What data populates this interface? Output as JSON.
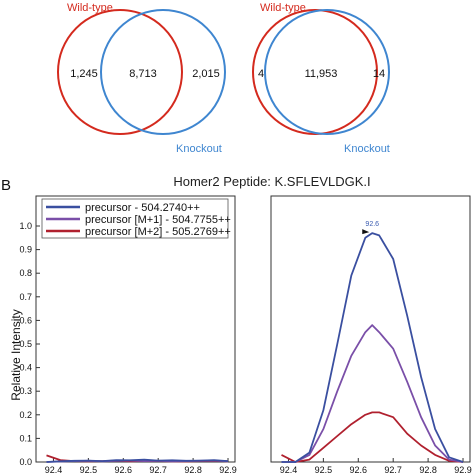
{
  "venn": [
    {
      "left_label": "Wild-type",
      "right_label": "Knockout",
      "left_only": "1,245",
      "overlap": "8,713",
      "right_only": "2,015"
    },
    {
      "left_label": "Wild-type",
      "right_label": "Knockout",
      "left_only": "4",
      "overlap": "11,953",
      "right_only": "14"
    }
  ],
  "panel_b": {
    "panel_letter": "B",
    "title": "Homer2 Peptide: K.SFLEVLDGK.I",
    "ylabel": "Relative Intensity"
  },
  "colors": {
    "wild_type": "#d42a1e",
    "knockout": "#3f86d0",
    "precursor": "#3a4fa0",
    "m1": "#7a4fa8",
    "m2": "#b0202e"
  },
  "chart_data": [
    {
      "type": "line",
      "ylim": [
        0,
        1.0
      ],
      "xlim": [
        92.35,
        92.92
      ],
      "xticks": [
        "92.4",
        "92.5",
        "92.6",
        "92.7",
        "92.8",
        "92.9"
      ],
      "yticks": [
        "0.0",
        "0.1",
        "0.2",
        "0.3",
        "0.4",
        "0.5",
        "0.6",
        "0.7",
        "0.8",
        "0.9",
        "1.0"
      ],
      "legend_position": "top-left",
      "series": [
        {
          "name": "precursor - 504.2740++",
          "x": [
            92.38,
            92.42,
            92.46,
            92.5,
            92.54,
            92.58,
            92.62,
            92.66,
            92.7,
            92.74,
            92.78,
            92.82,
            92.86,
            92.9
          ],
          "y": [
            0.0,
            0.003,
            0.005,
            0.006,
            0.004,
            0.008,
            0.007,
            0.01,
            0.006,
            0.007,
            0.005,
            0.006,
            0.008,
            0.004
          ]
        },
        {
          "name": "precursor [M+1] - 504.7755++",
          "x": [
            92.38,
            92.42,
            92.46,
            92.5,
            92.54,
            92.58,
            92.62,
            92.66,
            92.7,
            92.74,
            92.78,
            92.82,
            92.86,
            92.9
          ],
          "y": [
            0.0,
            0.002,
            0.004,
            0.005,
            0.003,
            0.005,
            0.006,
            0.004,
            0.005,
            0.003,
            0.004,
            0.005,
            0.006,
            0.003
          ]
        },
        {
          "name": "precursor [M+2] - 505.2769++",
          "x": [
            92.38,
            92.42,
            92.46,
            92.5,
            92.54,
            92.58,
            92.62,
            92.66,
            92.7,
            92.74,
            92.78,
            92.82,
            92.86,
            92.9
          ],
          "y": [
            0.028,
            0.008,
            0.004,
            0.003,
            0.004,
            0.006,
            0.003,
            0.005,
            0.004,
            0.003,
            0.002,
            0.004,
            0.005,
            0.003
          ]
        }
      ]
    },
    {
      "type": "line",
      "ylim": [
        0,
        1.0
      ],
      "xlim": [
        92.35,
        92.92
      ],
      "xticks": [
        "92.4",
        "92.5",
        "92.6",
        "92.7",
        "92.8",
        "92.9"
      ],
      "annotation": {
        "text": "92.6",
        "x": 92.64,
        "y": 0.97
      },
      "series": [
        {
          "name": "precursor - 504.2740++",
          "x": [
            92.38,
            92.42,
            92.46,
            92.5,
            92.54,
            92.58,
            92.62,
            92.64,
            92.66,
            92.7,
            92.74,
            92.78,
            92.82,
            92.86,
            92.9
          ],
          "y": [
            0.0,
            0.0,
            0.04,
            0.22,
            0.5,
            0.79,
            0.95,
            0.97,
            0.96,
            0.86,
            0.62,
            0.36,
            0.14,
            0.02,
            0.0
          ]
        },
        {
          "name": "precursor [M+1] - 504.7755++",
          "x": [
            92.38,
            92.42,
            92.46,
            92.5,
            92.54,
            92.58,
            92.62,
            92.64,
            92.66,
            92.7,
            92.74,
            92.78,
            92.82,
            92.86,
            92.9
          ],
          "y": [
            0.0,
            0.0,
            0.03,
            0.14,
            0.3,
            0.45,
            0.55,
            0.58,
            0.55,
            0.48,
            0.34,
            0.19,
            0.07,
            0.01,
            0.0
          ]
        },
        {
          "name": "precursor [M+2] - 505.2769++",
          "x": [
            92.38,
            92.42,
            92.46,
            92.5,
            92.54,
            92.58,
            92.62,
            92.64,
            92.66,
            92.7,
            92.74,
            92.78,
            92.82,
            92.86,
            92.9
          ],
          "y": [
            0.03,
            0.0,
            0.01,
            0.06,
            0.11,
            0.16,
            0.2,
            0.21,
            0.21,
            0.19,
            0.12,
            0.07,
            0.03,
            0.005,
            0.0
          ]
        }
      ]
    }
  ]
}
